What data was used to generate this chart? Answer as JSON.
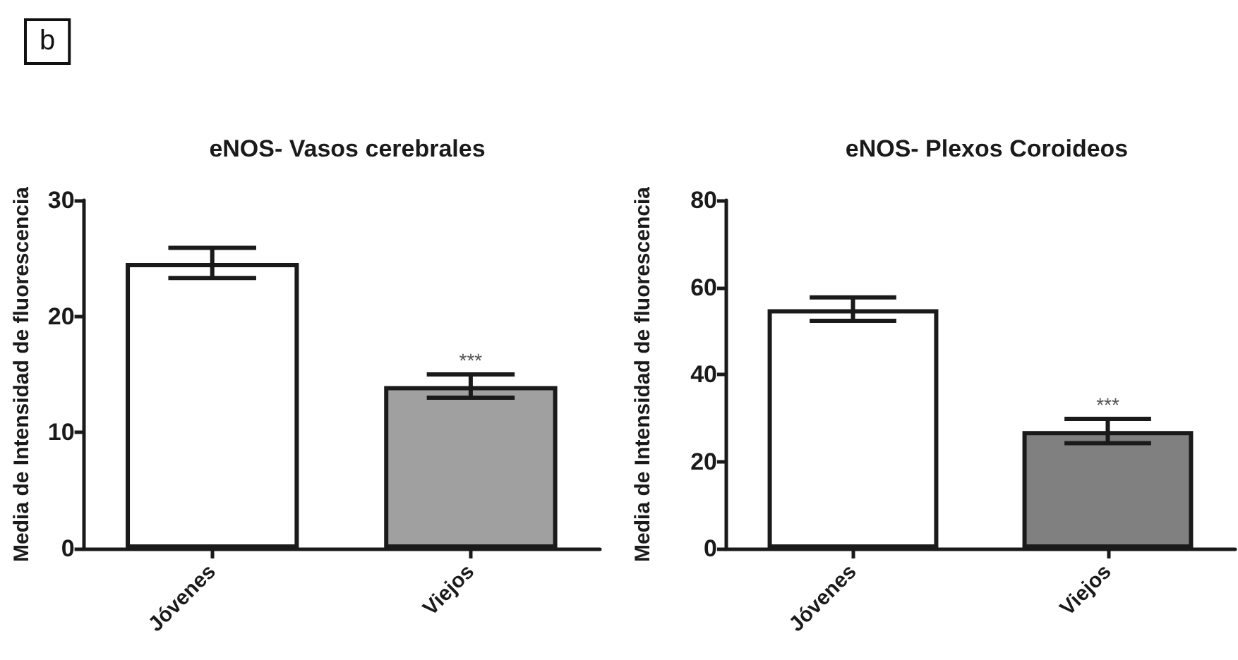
{
  "chart_data": [
    {
      "type": "bar",
      "title": "eNOS- Vasos cerebrales",
      "ylabel": "Media de Intensidad de fluorescencia",
      "categories": [
        "Jóvenes",
        "Viejos"
      ],
      "values": [
        24.6,
        14.0
      ],
      "colors": [
        "#ffffff",
        "#a0a0a0"
      ],
      "errors": [
        1.3,
        1.0
      ],
      "ylim": [
        0,
        30
      ],
      "yticks": [
        0,
        10,
        20,
        30
      ],
      "grid": false,
      "annotations": [
        "b",
        {
          "text": "***",
          "x": "Viejos",
          "y": 15.0
        }
      ]
    },
    {
      "type": "bar",
      "title": "eNOS- Plexos Coroideos",
      "ylabel": "Media de Intensidad de fluorescencia",
      "categories": [
        "Jóvenes",
        "Viejos"
      ],
      "values": [
        55.0,
        27.0
      ],
      "colors": [
        "#ffffff",
        "#808080"
      ],
      "errors": [
        2.7,
        2.8
      ],
      "ylim": [
        0,
        80
      ],
      "yticks": [
        0,
        20,
        40,
        60,
        80
      ],
      "grid": false,
      "annotations": [
        {
          "text": "***",
          "x": "Viejos",
          "y": 29.8
        }
      ]
    }
  ]
}
